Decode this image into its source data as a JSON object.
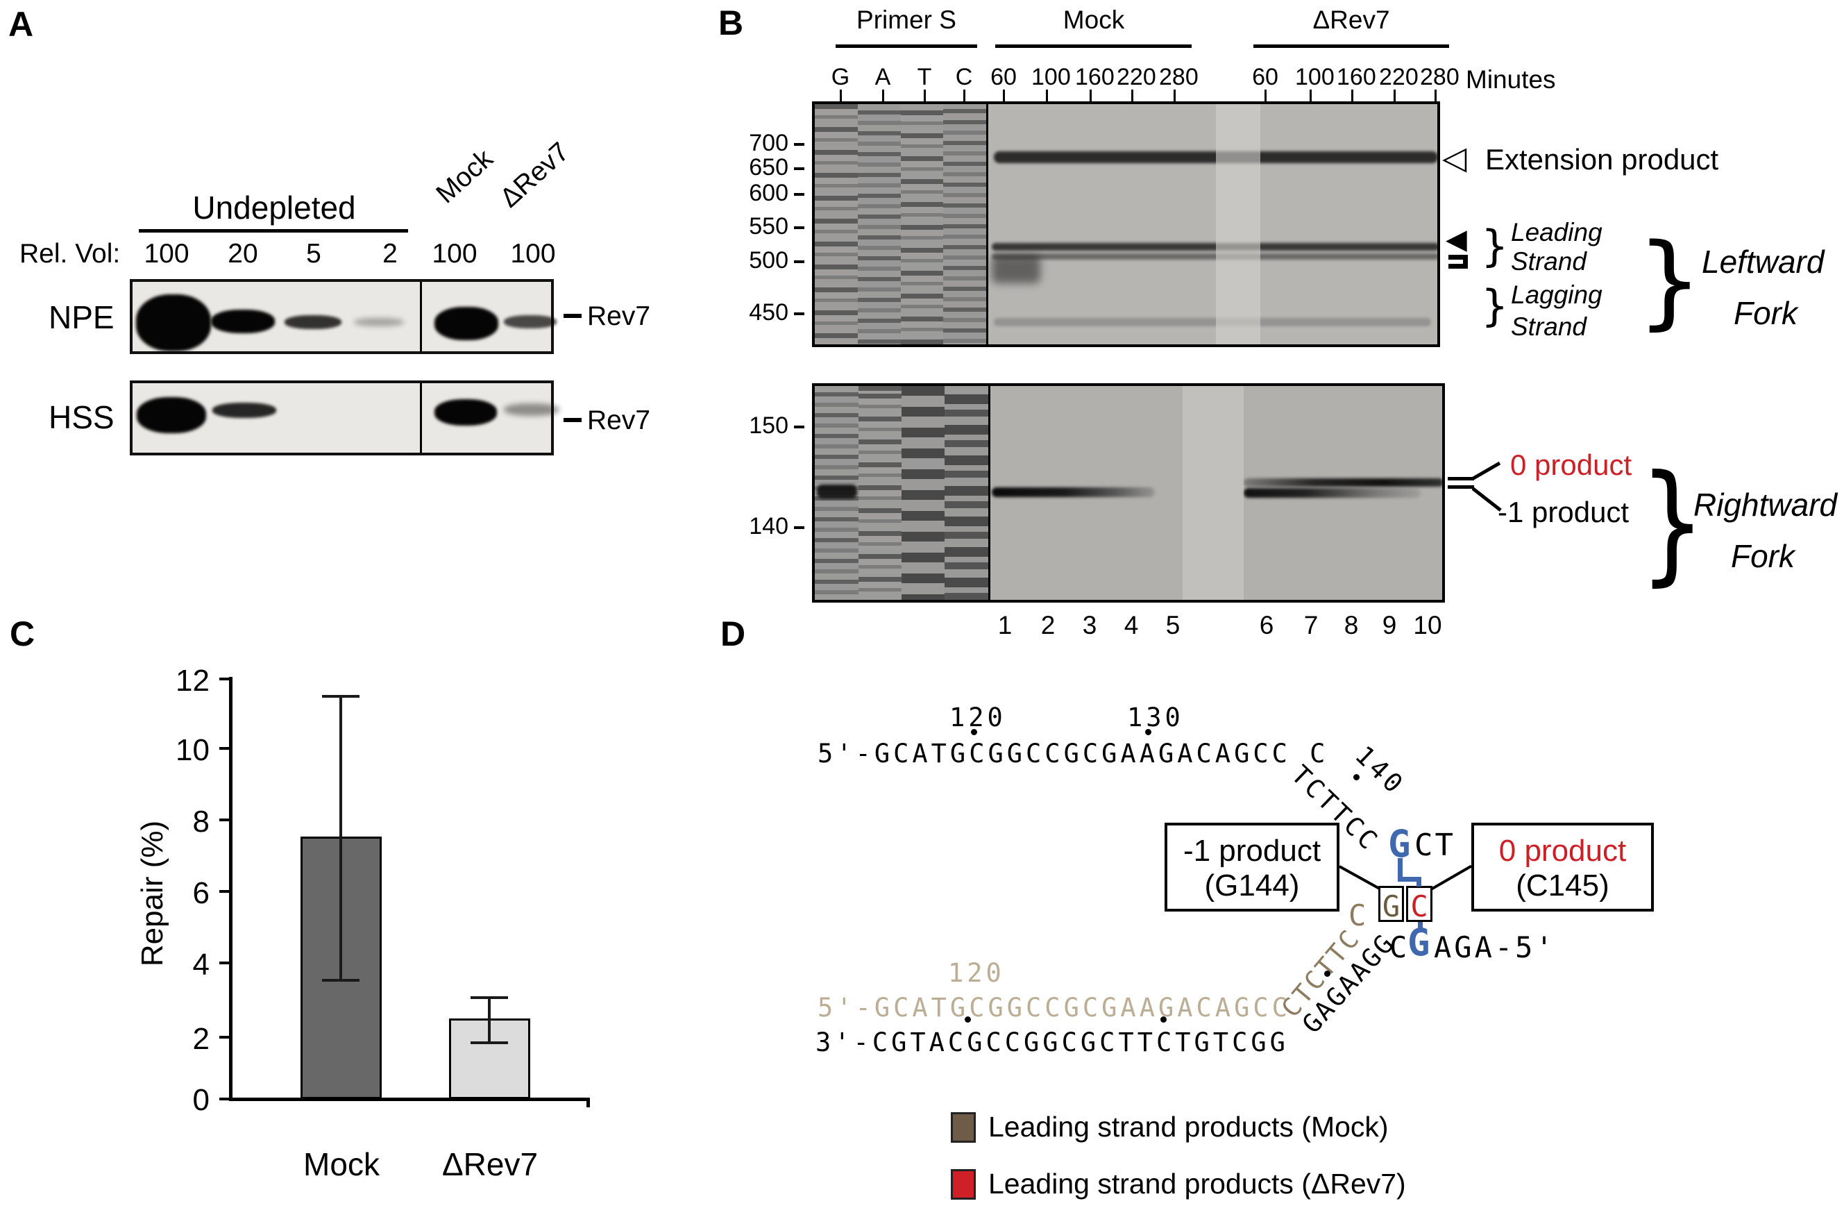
{
  "panelA": {
    "label": "A",
    "group_header": "Undepleted",
    "rel_vol_label": "Rel. Vol:",
    "volumes": [
      "100",
      "20",
      "5",
      "2",
      "100",
      "100"
    ],
    "mock_label": "Mock",
    "drev7_label": "ΔRev7",
    "row1_label": "NPE",
    "row2_label": "HSS",
    "band_label_1": "Rev7",
    "band_label_2": "Rev7"
  },
  "panelB": {
    "label": "B",
    "primer_s": "Primer S",
    "mock": "Mock",
    "drev7": "ΔRev7",
    "minutes": "Minutes",
    "seq_lanes": [
      "G",
      "A",
      "T",
      "C"
    ],
    "times": [
      "60",
      "100",
      "160",
      "220",
      "280"
    ],
    "top_markers": [
      "700",
      "650",
      "600",
      "550",
      "500",
      "450"
    ],
    "bottom_markers": [
      "150",
      "140"
    ],
    "lane_numbers": [
      "1",
      "2",
      "3",
      "4",
      "5",
      "6",
      "7",
      "8",
      "9",
      "10"
    ],
    "extension_label": "Extension product",
    "leading_label_1": "Leading",
    "leading_label_2": "Strand",
    "lagging_label_1": "Lagging",
    "lagging_label_2": "Strand",
    "leftward_fork_1": "Leftward",
    "leftward_fork_2": "Fork",
    "zero_product": "0 product",
    "minus1_product": "-1 product",
    "rightward_fork_1": "Rightward",
    "rightward_fork_2": "Fork",
    "open_triangle": "◁",
    "filled_triangle": "◀",
    "brace": "}"
  },
  "panelC": {
    "label": "C",
    "ylabel": "Repair (%)",
    "yticks": [
      "12",
      "10",
      "8",
      "6",
      "4",
      "2",
      "0"
    ]
  },
  "chart_data": {
    "type": "bar",
    "categories": [
      "Mock",
      "ΔRev7"
    ],
    "values": [
      7.5,
      2.3
    ],
    "error_low": [
      3.4,
      1.6
    ],
    "error_high": [
      11.5,
      2.9
    ],
    "title": "",
    "xlabel": "",
    "ylabel": "Repair (%)",
    "ylim": [
      0,
      12
    ],
    "yticks": [
      0,
      2,
      4,
      6,
      8,
      10,
      12
    ],
    "bar_colors": [
      "#686868",
      "#dcdcdc"
    ],
    "grid": false,
    "legend_position": "none"
  },
  "panelD": {
    "label": "D",
    "top_sequence": "5'-GCATGCGGCCGCGAAGACAGCC C",
    "pos_120": "120",
    "pos_130": "130",
    "pos_140": "140",
    "top_diagonal": "TCTTCC",
    "junction_blue_g": "G",
    "junction_ct": "CT",
    "minus1_box_line1": "-1 product",
    "minus1_box_line2": "(G144)",
    "zero_box_line1": "0 product",
    "zero_box_line2": "(C145)",
    "boxed_g": "G",
    "boxed_c": "C",
    "bottom_pre_c": "C",
    "bottom_blue_g": "G",
    "bottom_right_seq": "AGA-5'",
    "bottom_diagonal": "GAGAAGG",
    "nascent_diagonal": "CTCTTC",
    "nascent_c": "C",
    "nascent_sequence": "5'-GCATGCGGCCGCGAAGACAGCC",
    "nascent_120": "120",
    "bottom_sequence": "3'-CGTACGCCGGCGCTTCTGTCGG",
    "legend": [
      {
        "color": "#6e5c48",
        "label": "Leading strand products (Mock)"
      },
      {
        "color": "#cf2027",
        "label": "Leading strand products  (ΔRev7)"
      }
    ]
  },
  "colors": {
    "accent_red": "#cc2027",
    "accent_blue": "#3f68af",
    "nascent_tan": "#bcae94",
    "mock_brown": "#6e5c48",
    "bar_dark": "#686868",
    "bar_light": "#dcdcdc"
  }
}
